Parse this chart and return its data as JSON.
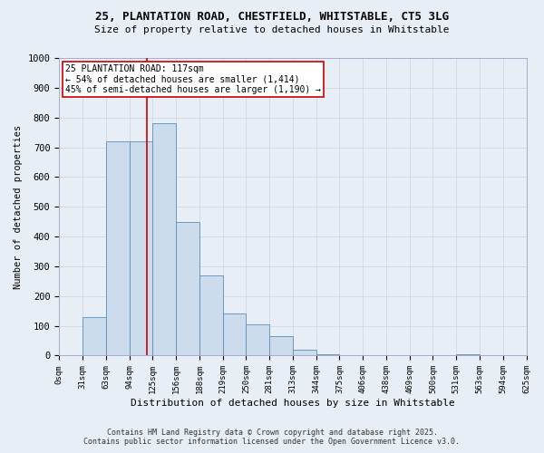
{
  "title_line1": "25, PLANTATION ROAD, CHESTFIELD, WHITSTABLE, CT5 3LG",
  "title_line2": "Size of property relative to detached houses in Whitstable",
  "xlabel": "Distribution of detached houses by size in Whitstable",
  "ylabel": "Number of detached properties",
  "bar_color": "#cddcec",
  "bar_edge_color": "#5b8db8",
  "grid_color": "#d0d8e4",
  "background_color": "#e8eef6",
  "bin_edges": [
    0,
    31,
    63,
    94,
    125,
    156,
    188,
    219,
    250,
    281,
    313,
    344,
    375,
    406,
    438,
    469,
    500,
    531,
    563,
    594,
    625
  ],
  "bin_labels": [
    "0sqm",
    "31sqm",
    "63sqm",
    "94sqm",
    "125sqm",
    "156sqm",
    "188sqm",
    "219sqm",
    "250sqm",
    "281sqm",
    "313sqm",
    "344sqm",
    "375sqm",
    "406sqm",
    "438sqm",
    "469sqm",
    "500sqm",
    "531sqm",
    "563sqm",
    "594sqm",
    "625sqm"
  ],
  "counts": [
    0,
    130,
    720,
    720,
    780,
    450,
    270,
    140,
    105,
    65,
    20,
    5,
    0,
    0,
    0,
    0,
    0,
    5,
    0,
    0
  ],
  "property_size": 117,
  "vline_color": "#cc0000",
  "annotation_text": "25 PLANTATION ROAD: 117sqm\n← 54% of detached houses are smaller (1,414)\n45% of semi-detached houses are larger (1,190) →",
  "annotation_box_color": "#ffffff",
  "annotation_box_edge": "#cc0000",
  "ylim": [
    0,
    1000
  ],
  "yticks": [
    0,
    100,
    200,
    300,
    400,
    500,
    600,
    700,
    800,
    900,
    1000
  ],
  "footer_line1": "Contains HM Land Registry data © Crown copyright and database right 2025.",
  "footer_line2": "Contains public sector information licensed under the Open Government Licence v3.0."
}
